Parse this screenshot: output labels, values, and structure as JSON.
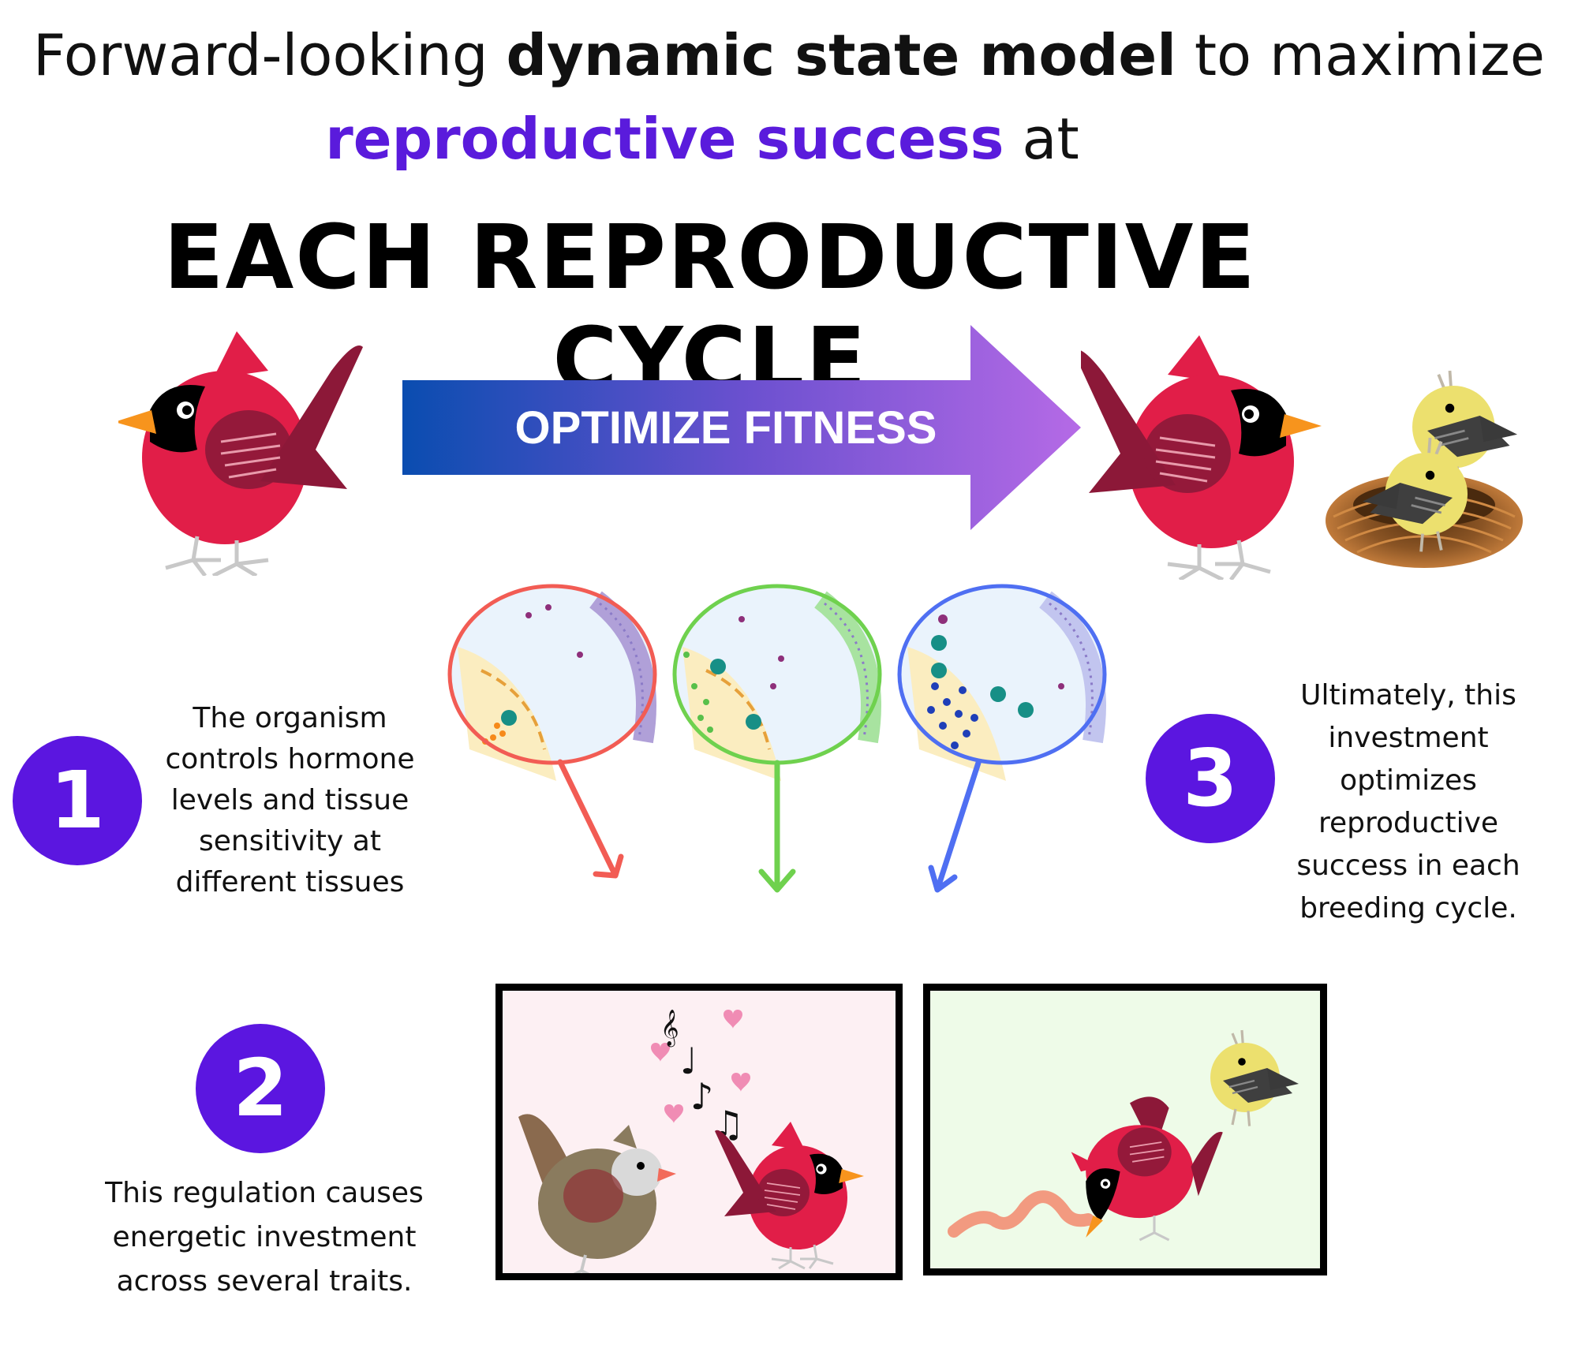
{
  "title": {
    "line1_prefix": "Forward-looking",
    "line1_bold": "dynamic state model",
    "line1_suffix": "to maximize",
    "line2_accent": "reproductive success",
    "line2_suffix": "at",
    "line3": "EACH REPRODUCTIVE CYCLE"
  },
  "arrow": {
    "label": "OPTIMIZE FITNESS"
  },
  "steps": [
    {
      "number": "1",
      "text": "The organism controls hormone levels and tissue sensitivity at different tissues"
    },
    {
      "number": "2",
      "text": "This regulation causes energetic investment across several traits."
    },
    {
      "number": "3",
      "text": "Ultimately, this investment optimizes reproductive success in each breeding cycle."
    }
  ],
  "music_notes": [
    "𝄞",
    "♩",
    "♪",
    "♫"
  ],
  "colors": {
    "accent_purple": "#5b16e0",
    "cardinal_red": "#e11e48",
    "cardinal_wing": "#8c1838",
    "beak_orange": "#f7941d",
    "chick_yellow": "#ece06e",
    "tissue_red": "#f25c54",
    "tissue_green": "#6fd14e",
    "tissue_blue": "#4f6ff2",
    "panel_pink": "#fdf0f3",
    "panel_green": "#eefbe8",
    "arrow_start": "#0a4db0",
    "arrow_end": "#b56ae6"
  },
  "icons": [
    "cardinal-bird-icon",
    "chick-icon",
    "nest-icon",
    "cell-icon",
    "music-note-icon",
    "heart-icon",
    "worm-icon",
    "female-bird-icon"
  ]
}
